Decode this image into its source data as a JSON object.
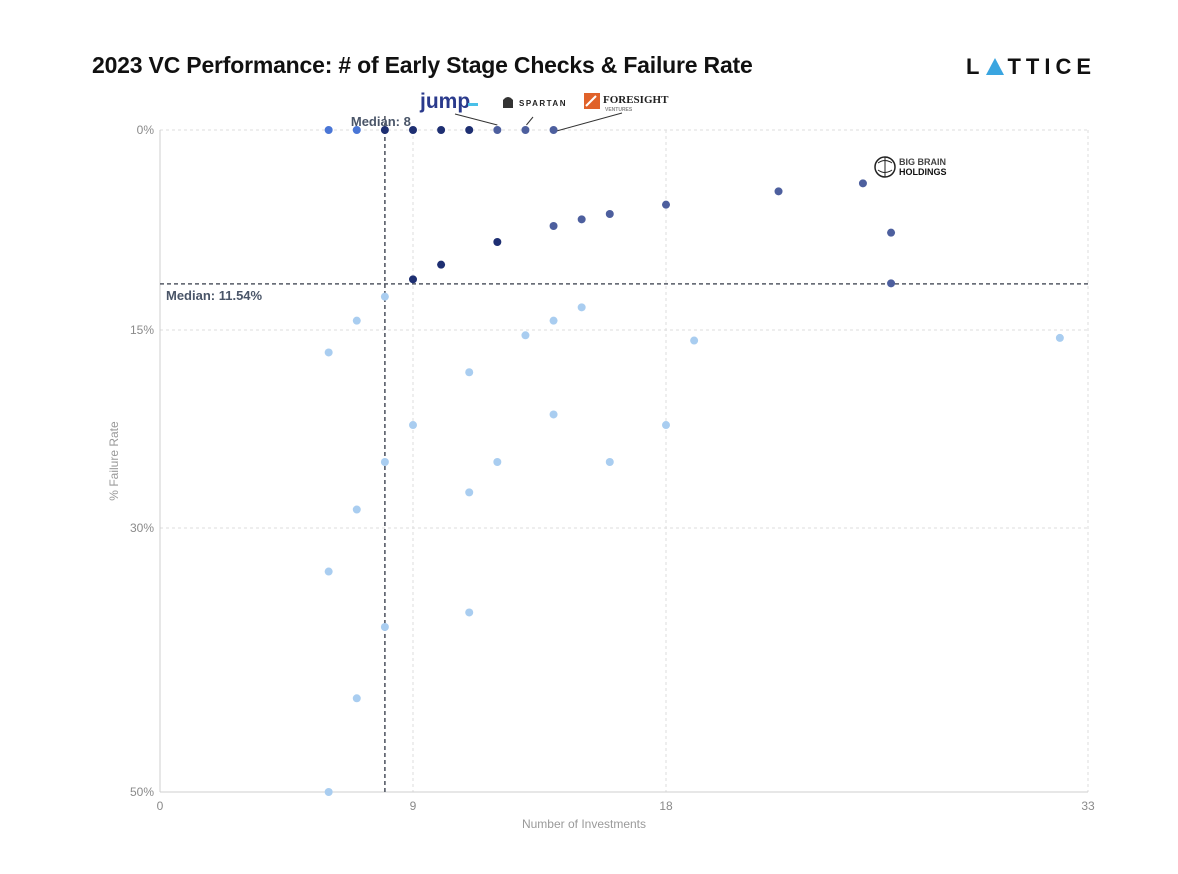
{
  "header": {
    "title": "2023 VC Performance: # of Early Stage Checks & Failure Rate",
    "brand_prefix": "L",
    "brand_suffix": "TTICE"
  },
  "chart_data": {
    "type": "scatter",
    "title": "2023 VC Performance: # of Early Stage Checks & Failure Rate",
    "xlabel": "Number of Investments",
    "ylabel": "% Failure Rate",
    "x_ticks": [
      0,
      9,
      18,
      33
    ],
    "x_tick_labels": [
      "0",
      "9",
      "18",
      "33"
    ],
    "y_ticks": [
      0,
      15,
      30,
      50
    ],
    "y_tick_labels": [
      "0%",
      "15%",
      "30%",
      "50%"
    ],
    "xlim": [
      0,
      33
    ],
    "ylim": [
      0,
      50
    ],
    "y_inverted": true,
    "grid": true,
    "medians": {
      "x": 8,
      "x_label": "Median: 8",
      "y": 11.54,
      "y_label": "Median: 11.54%"
    },
    "colors": {
      "zero_fail": "#4a76d6",
      "top_dark": "#1e2f72",
      "top_mid": "#4d5f9e",
      "below_median": "#a9cdf0",
      "median_line": "#555a66",
      "grid": "#dddddd"
    },
    "points": [
      {
        "x": 6,
        "y": 0,
        "tone": "zero_fail"
      },
      {
        "x": 7,
        "y": 0,
        "tone": "zero_fail"
      },
      {
        "x": 8,
        "y": 0,
        "tone": "top_dark"
      },
      {
        "x": 9,
        "y": 0,
        "tone": "top_dark"
      },
      {
        "x": 10,
        "y": 0,
        "tone": "top_dark"
      },
      {
        "x": 11,
        "y": 0,
        "tone": "top_dark"
      },
      {
        "x": 12,
        "y": 0,
        "tone": "top_mid"
      },
      {
        "x": 13,
        "y": 0,
        "tone": "top_mid"
      },
      {
        "x": 14,
        "y": 0,
        "tone": "top_mid"
      },
      {
        "x": 9,
        "y": 11.2,
        "tone": "top_dark"
      },
      {
        "x": 10,
        "y": 10.1,
        "tone": "top_dark"
      },
      {
        "x": 12,
        "y": 8.4,
        "tone": "top_dark"
      },
      {
        "x": 14,
        "y": 7.2,
        "tone": "top_mid"
      },
      {
        "x": 15,
        "y": 6.7,
        "tone": "top_mid"
      },
      {
        "x": 16,
        "y": 6.3,
        "tone": "top_mid"
      },
      {
        "x": 18,
        "y": 5.6,
        "tone": "top_mid"
      },
      {
        "x": 22,
        "y": 4.6,
        "tone": "top_mid"
      },
      {
        "x": 25,
        "y": 4.0,
        "tone": "top_mid"
      },
      {
        "x": 26,
        "y": 7.7,
        "tone": "top_mid"
      },
      {
        "x": 26,
        "y": 11.5,
        "tone": "top_mid"
      },
      {
        "x": 8,
        "y": 12.5,
        "tone": "below_median"
      },
      {
        "x": 7,
        "y": 14.3,
        "tone": "below_median"
      },
      {
        "x": 6,
        "y": 16.7,
        "tone": "below_median"
      },
      {
        "x": 13,
        "y": 15.4,
        "tone": "below_median"
      },
      {
        "x": 14,
        "y": 14.3,
        "tone": "below_median"
      },
      {
        "x": 15,
        "y": 13.3,
        "tone": "below_median"
      },
      {
        "x": 19,
        "y": 15.8,
        "tone": "below_median"
      },
      {
        "x": 32,
        "y": 15.6,
        "tone": "below_median"
      },
      {
        "x": 11,
        "y": 18.2,
        "tone": "below_median"
      },
      {
        "x": 14,
        "y": 21.4,
        "tone": "below_median"
      },
      {
        "x": 9,
        "y": 22.2,
        "tone": "below_median"
      },
      {
        "x": 18,
        "y": 22.2,
        "tone": "below_median"
      },
      {
        "x": 8,
        "y": 25.0,
        "tone": "below_median"
      },
      {
        "x": 12,
        "y": 25.0,
        "tone": "below_median"
      },
      {
        "x": 16,
        "y": 25.0,
        "tone": "below_median"
      },
      {
        "x": 11,
        "y": 27.3,
        "tone": "below_median"
      },
      {
        "x": 7,
        "y": 28.6,
        "tone": "below_median"
      },
      {
        "x": 6,
        "y": 33.3,
        "tone": "below_median"
      },
      {
        "x": 11,
        "y": 36.4,
        "tone": "below_median"
      },
      {
        "x": 8,
        "y": 37.5,
        "tone": "below_median"
      },
      {
        "x": 7,
        "y": 42.9,
        "tone": "below_median"
      },
      {
        "x": 6,
        "y": 50.0,
        "tone": "below_median"
      }
    ],
    "annotations": [
      {
        "name": "jump",
        "text": "jump",
        "target_x": 12,
        "target_y": 0,
        "color": "#2a3a8c"
      },
      {
        "name": "spartan",
        "text": "SPARTAN",
        "target_x": 13,
        "target_y": 0,
        "color": "#222222"
      },
      {
        "name": "foresight",
        "text": "FORESIGHT",
        "subtext": "VENTURES",
        "target_x": 14,
        "target_y": 0,
        "color": "#e0622a"
      },
      {
        "name": "big-brain-holdings",
        "text": "BIG BRAIN",
        "subtext": "HOLDINGS",
        "target_x": 25,
        "target_y": 4.0,
        "color": "#111111"
      }
    ]
  }
}
